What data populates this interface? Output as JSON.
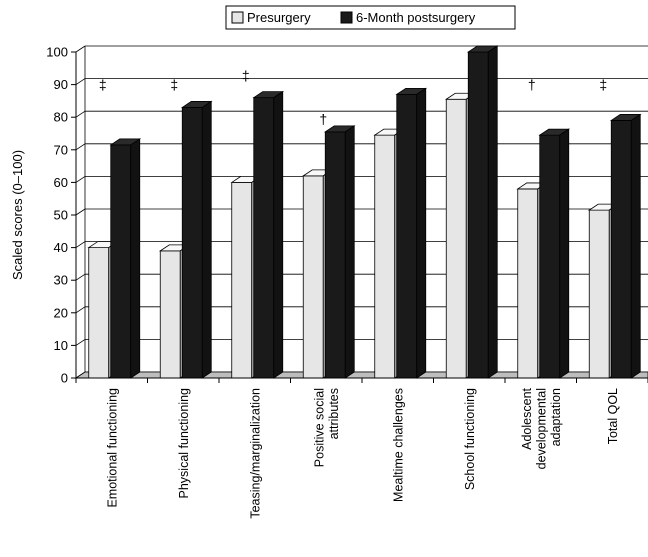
{
  "chart_data": {
    "type": "bar",
    "style": "3d-clustered",
    "ylabel": "Scaled scores (0–100)",
    "xlabel": "",
    "ylim": [
      0,
      100
    ],
    "yticks": [
      "0",
      "10",
      "20",
      "30",
      "40",
      "50",
      "60",
      "70",
      "80",
      "90",
      "100"
    ],
    "grid": true,
    "legend_position": "top-center",
    "categories": [
      [
        "Emotional functioning"
      ],
      [
        "Physical functioning"
      ],
      [
        "Teasing/marginalization"
      ],
      [
        "Positive social",
        "attributes"
      ],
      [
        "Mealtime challenges"
      ],
      [
        "School functioning"
      ],
      [
        "Adolescent",
        "developmental",
        "adaptation"
      ],
      [
        "Total QOL"
      ]
    ],
    "series": [
      {
        "name": "Presurgery",
        "color": "#e6e6e6",
        "values": [
          40,
          39,
          60,
          62,
          74.5,
          85.5,
          58,
          51.5
        ]
      },
      {
        "name": "6-Month postsurgery",
        "color": "#1a1a1a",
        "values": [
          71.5,
          83,
          86,
          75.5,
          87,
          100,
          74.5,
          79
        ]
      }
    ],
    "significance_markers": [
      "‡",
      "‡",
      "‡",
      "†",
      "",
      "",
      "†",
      "‡"
    ]
  }
}
